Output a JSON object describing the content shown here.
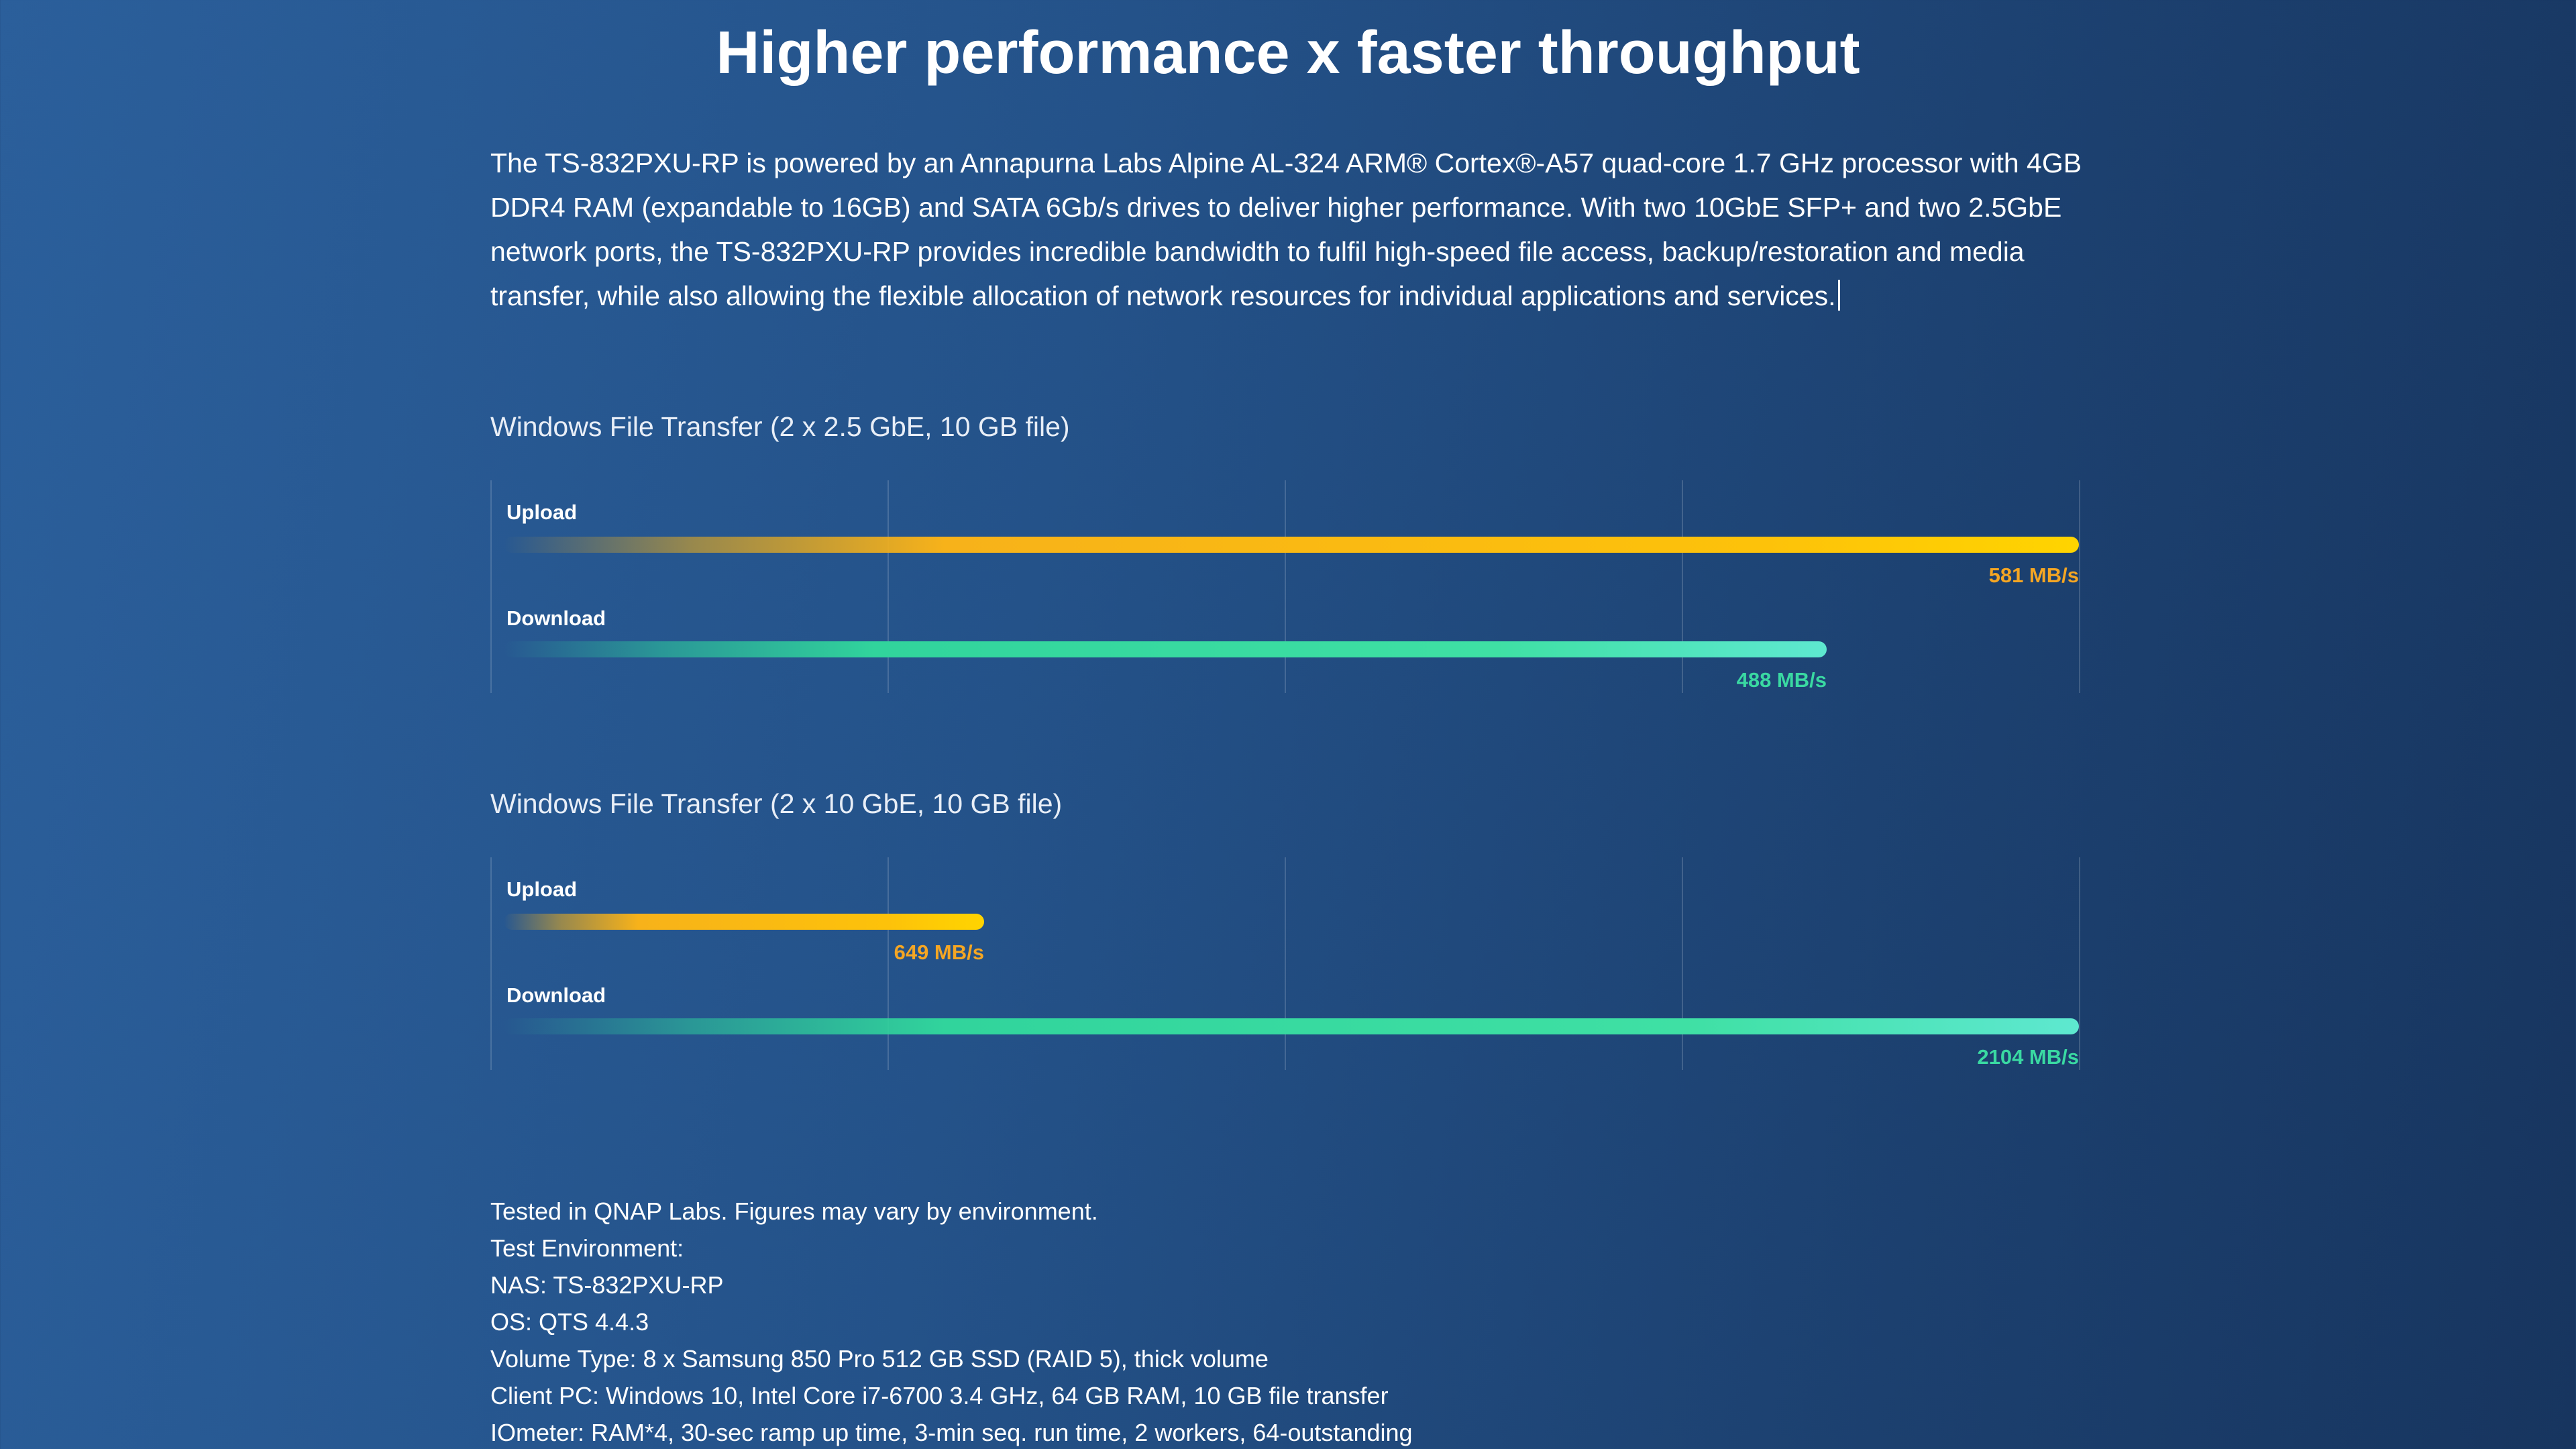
{
  "header": {
    "title": "Higher performance x faster throughput"
  },
  "description": "The TS-832PXU-RP is powered by an Annapurna Labs Alpine AL-324 ARM® Cortex®-A57 quad-core 1.7 GHz processor with 4GB DDR4 RAM (expandable to 16GB) and SATA 6Gb/s drives to deliver higher performance. With two 10GbE SFP+ and two 2.5GbE network ports, the TS-832PXU-RP provides incredible bandwidth to fulfil high-speed file access, backup/restoration and media transfer, while also allowing the flexible allocation of network resources for individual applications and services.",
  "colors": {
    "upload": "#f5a623",
    "download": "#3ad9a2",
    "background": "#245289"
  },
  "chart_data": [
    {
      "type": "bar",
      "orientation": "horizontal",
      "title": "Windows File Transfer (2 x 2.5 GbE, 10 GB file)",
      "unit": "MB/s",
      "grid": true,
      "bars": [
        {
          "label": "Upload",
          "value": 581,
          "value_label": "581 MB/s",
          "fill_fraction": 1.0,
          "color": "#f5a623"
        },
        {
          "label": "Download",
          "value": 488,
          "value_label": "488 MB/s",
          "fill_fraction": 0.84,
          "color": "#3ad9a2"
        }
      ]
    },
    {
      "type": "bar",
      "orientation": "horizontal",
      "title": "Windows File Transfer (2 x 10 GbE, 10 GB file)",
      "unit": "MB/s",
      "grid": true,
      "bars": [
        {
          "label": "Upload",
          "value": 649,
          "value_label": "649 MB/s",
          "fill_fraction": 0.305,
          "color": "#f5a623"
        },
        {
          "label": "Download",
          "value": 2104,
          "value_label": "2104 MB/s",
          "fill_fraction": 1.0,
          "color": "#3ad9a2"
        }
      ]
    }
  ],
  "notes": [
    "Tested in QNAP Labs. Figures may vary by environment.",
    "Test Environment:",
    "NAS: TS-832PXU-RP",
    "OS: QTS 4.4.3",
    "Volume Type: 8 x Samsung 850 Pro 512 GB SSD (RAID 5), thick volume",
    "Client PC: Windows 10, Intel Core i7-6700 3.4 GHz, 64 GB RAM, 10 GB file transfer",
    "IOmeter: RAM*4, 30-sec ramp up time, 3-min seq. run time, 2 workers, 64-outstanding"
  ]
}
